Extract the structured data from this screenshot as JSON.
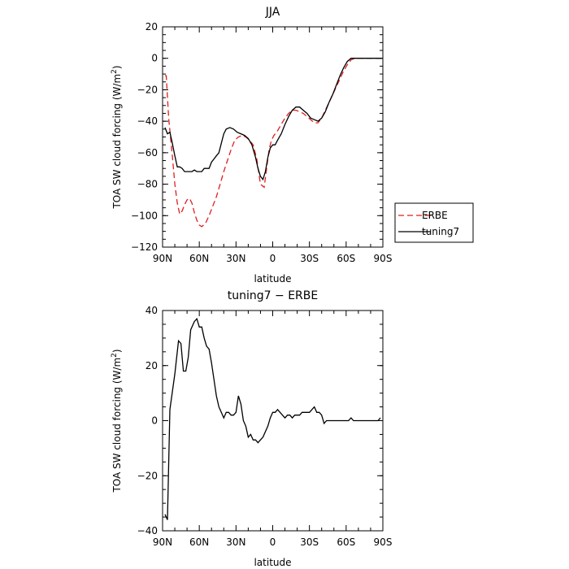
{
  "chart_data": [
    {
      "type": "line",
      "title": "JJA",
      "xlabel": "latitude",
      "ylabel": "TOA SW cloud forcing (W/m",
      "ylabel_sup": "2",
      "ylabel_close": ")",
      "xlim": [
        90,
        -90
      ],
      "ylim": [
        -120,
        20
      ],
      "xticks": [
        90,
        60,
        30,
        0,
        -30,
        -60,
        -90
      ],
      "xtick_labels": [
        "90N",
        "60N",
        "30N",
        "0",
        "30S",
        "60S",
        "90S"
      ],
      "yticks": [
        20,
        0,
        -20,
        -40,
        -60,
        -80,
        -100,
        -120
      ],
      "ytick_labels": [
        "20",
        "0",
        "−20",
        "−40",
        "−60",
        "−80",
        "−100",
        "−120"
      ],
      "legend_position": "right",
      "series": [
        {
          "name": "ERBE",
          "color": "#e01e1e",
          "dash": "dashed",
          "x": [
            88,
            87,
            85,
            82,
            80,
            78,
            76,
            74,
            72,
            70,
            68,
            66,
            64,
            62,
            60,
            58,
            55,
            52,
            49,
            46,
            43,
            40,
            37,
            34,
            31,
            28,
            25,
            22,
            19,
            16,
            13,
            10,
            7,
            5,
            3,
            1,
            -1,
            -4,
            -7,
            -10,
            -13,
            -16,
            -19,
            -22,
            -25,
            -28,
            -31,
            -34,
            -37,
            -40,
            -43,
            -46,
            -49,
            -52,
            -55,
            -58,
            -61,
            -64,
            -67,
            -70,
            -75,
            -80,
            -85,
            -89
          ],
          "y": [
            -11,
            -11,
            -38,
            -62,
            -80,
            -92,
            -99,
            -97,
            -93,
            -90,
            -89,
            -92,
            -98,
            -103,
            -106,
            -107,
            -105,
            -100,
            -94,
            -88,
            -80,
            -72,
            -65,
            -58,
            -52,
            -50,
            -49,
            -50,
            -52,
            -55,
            -64,
            -80,
            -82,
            -70,
            -58,
            -52,
            -49,
            -46,
            -42,
            -38,
            -35,
            -33,
            -33,
            -34,
            -35,
            -37,
            -39,
            -41,
            -41,
            -38,
            -33,
            -28,
            -23,
            -18,
            -13,
            -8,
            -4,
            -1,
            0,
            0,
            0,
            0,
            0,
            0
          ]
        },
        {
          "name": "tuning7",
          "color": "#000000",
          "dash": "solid",
          "x": [
            88,
            86,
            84,
            82,
            80,
            78,
            76,
            74,
            72,
            70,
            68,
            66,
            64,
            62,
            60,
            58,
            56,
            54,
            52,
            50,
            48,
            46,
            44,
            42,
            40,
            38,
            35,
            32,
            29,
            26,
            23,
            20,
            17,
            14,
            12,
            10,
            8,
            6,
            4,
            2,
            0,
            -2,
            -4,
            -7,
            -10,
            -13,
            -16,
            -19,
            -22,
            -25,
            -28,
            -31,
            -34,
            -37,
            -40,
            -43,
            -46,
            -49,
            -52,
            -55,
            -58,
            -61,
            -64,
            -67,
            -70,
            -75,
            -80,
            -85,
            -89
          ],
          "y": [
            -44,
            -48,
            -47,
            -54,
            -62,
            -69,
            -69,
            -70,
            -72,
            -72,
            -72,
            -72,
            -71,
            -72,
            -72,
            -72,
            -70,
            -70,
            -70,
            -66,
            -64,
            -62,
            -60,
            -54,
            -48,
            -45,
            -44,
            -45,
            -47,
            -48,
            -49,
            -51,
            -55,
            -63,
            -70,
            -75,
            -77,
            -72,
            -63,
            -57,
            -55,
            -55,
            -52,
            -48,
            -42,
            -37,
            -33,
            -31,
            -31,
            -33,
            -35,
            -38,
            -39,
            -40,
            -38,
            -34,
            -28,
            -23,
            -17,
            -11,
            -6,
            -2,
            0,
            0,
            0,
            0,
            0,
            0,
            0
          ]
        }
      ]
    },
    {
      "type": "line",
      "title": "tuning7 − ERBE",
      "xlabel": "latitude",
      "ylabel": "TOA SW cloud forcing (W/m",
      "ylabel_sup": "2",
      "ylabel_close": ")",
      "xlim": [
        90,
        -90
      ],
      "ylim": [
        -40,
        40
      ],
      "xticks": [
        90,
        60,
        30,
        0,
        -30,
        -60,
        -90
      ],
      "xtick_labels": [
        "90N",
        "60N",
        "30N",
        "0",
        "30S",
        "60S",
        "90S"
      ],
      "yticks": [
        40,
        20,
        0,
        -20,
        -40
      ],
      "ytick_labels": [
        "40",
        "20",
        "0",
        "−20",
        "−40"
      ],
      "series": [
        {
          "name": "",
          "color": "#000000",
          "dash": "solid",
          "x": [
            88,
            86,
            84,
            80,
            77,
            75,
            73,
            71,
            69,
            67,
            64,
            62,
            60,
            58,
            56,
            54,
            52,
            50,
            48,
            46,
            44,
            42,
            40,
            38,
            36,
            34,
            32,
            30,
            28,
            26,
            24,
            22,
            20,
            18,
            16,
            14,
            12,
            10,
            8,
            6,
            4,
            2,
            0,
            -2,
            -4,
            -6,
            -8,
            -10,
            -12,
            -14,
            -16,
            -18,
            -20,
            -22,
            -24,
            -26,
            -28,
            -30,
            -32,
            -34,
            -36,
            -38,
            -40,
            -42,
            -44,
            -46,
            -48,
            -50,
            -52,
            -54,
            -56,
            -58,
            -60,
            -62,
            -64,
            -66,
            -68,
            -70,
            -72,
            -74,
            -76,
            -78,
            -80,
            -82,
            -84,
            -86,
            -88
          ],
          "y": [
            -34,
            -36,
            4,
            17,
            29,
            28,
            18,
            18,
            23,
            33,
            36,
            37,
            34,
            34,
            30,
            27,
            26,
            21,
            15,
            9,
            5,
            3,
            1,
            3,
            3,
            2,
            2,
            3,
            9,
            6,
            0,
            -2,
            -6,
            -5,
            -7,
            -7,
            -8,
            -7,
            -6,
            -4,
            -2,
            1,
            3,
            3,
            4,
            3,
            2,
            1,
            2,
            2,
            1,
            2,
            2,
            2,
            3,
            3,
            3,
            3,
            4,
            5,
            3,
            3,
            2,
            -1,
            0,
            0,
            0,
            0,
            0,
            0,
            0,
            0,
            0,
            0,
            1,
            0,
            0,
            0,
            0,
            0,
            0,
            0,
            0,
            0,
            0,
            0,
            1
          ]
        }
      ]
    }
  ]
}
